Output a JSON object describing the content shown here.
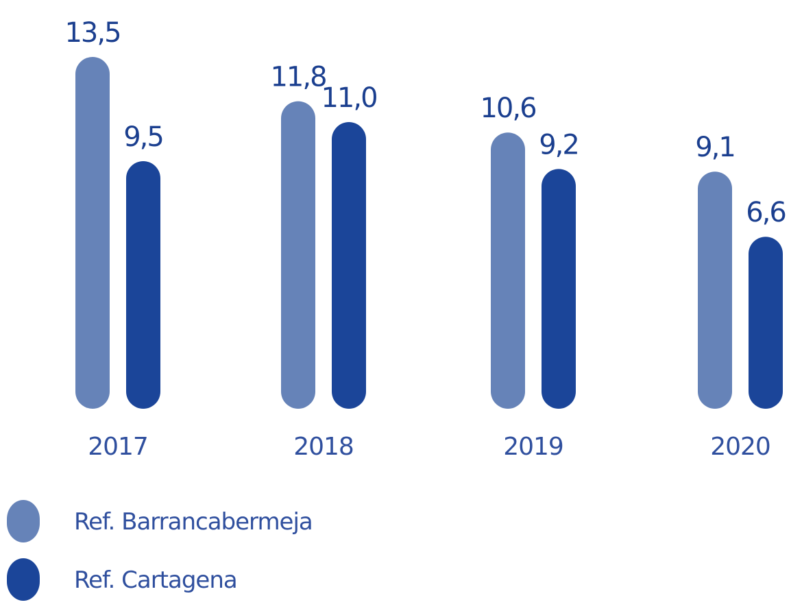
{
  "chart_data": {
    "type": "bar",
    "title": "",
    "xlabel": "",
    "ylabel": "",
    "ylim": [
      0,
      13.5
    ],
    "grid": false,
    "legend_position": "bottom-left",
    "categories": [
      "2017",
      "2018",
      "2019",
      "2020"
    ],
    "series": [
      {
        "name": "Ref. Barrancabermeja",
        "color": "#6683b8",
        "values": [
          13.5,
          11.8,
          10.6,
          9.1
        ],
        "labels": [
          "13,5",
          "11,8",
          "10,6",
          "9,1"
        ]
      },
      {
        "name": "Ref. Cartagena",
        "color": "#1b4599",
        "values": [
          9.5,
          11.0,
          9.2,
          6.6
        ],
        "labels": [
          "9,5",
          "11,0",
          "9,2",
          "6,6"
        ]
      }
    ]
  }
}
